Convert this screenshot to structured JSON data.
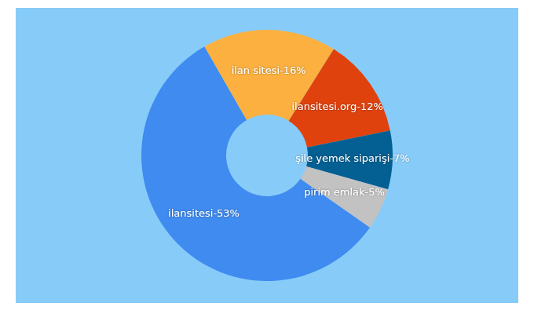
{
  "chart_data": {
    "type": "pie",
    "categories": [
      "ilansitesi",
      "ilan sitesi",
      "ilansitesi.org",
      "şile yemek siparişi",
      "pirim emlak"
    ],
    "values": [
      53,
      16,
      12,
      7,
      5
    ],
    "value_labels": [
      "ilansitesi-53%",
      "ilan sitesi-16%",
      "ilansitesi.org-12%",
      "şile yemek siparişi-7%",
      "pirim emlak-5%"
    ],
    "colors": [
      "#3f8bf0",
      "#fbb040",
      "#e0420e",
      "#045f92",
      "#c2c2c2"
    ],
    "data_labels": true
  }
}
